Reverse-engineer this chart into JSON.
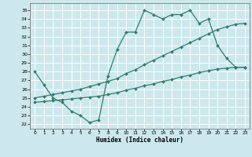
{
  "xlabel": "Humidex (Indice chaleur)",
  "xlim": [
    -0.5,
    23.5
  ],
  "ylim": [
    21.5,
    35.8
  ],
  "yticks": [
    22,
    23,
    24,
    25,
    26,
    27,
    28,
    29,
    30,
    31,
    32,
    33,
    34,
    35
  ],
  "xticks": [
    0,
    1,
    2,
    3,
    4,
    5,
    6,
    7,
    8,
    9,
    10,
    11,
    12,
    13,
    14,
    15,
    16,
    17,
    18,
    19,
    20,
    21,
    22,
    23
  ],
  "bg_color": "#cce8ed",
  "grid_color": "#ffffff",
  "line_color": "#2e7d6e",
  "line1_x": [
    0,
    1,
    2,
    3,
    4,
    5,
    6,
    7,
    8,
    9,
    10,
    11,
    12,
    13,
    14,
    15,
    16,
    17,
    18,
    19,
    20,
    21,
    22,
    23
  ],
  "line1_y": [
    28.0,
    26.5,
    25.0,
    24.5,
    23.5,
    23.0,
    22.2,
    22.5,
    27.5,
    30.5,
    32.5,
    32.5,
    35.0,
    34.5,
    34.0,
    34.5,
    34.5,
    35.0,
    33.5,
    34.0,
    31.0,
    29.5,
    28.5,
    28.5
  ],
  "line2_x": [
    0,
    1,
    2,
    3,
    4,
    5,
    6,
    7,
    8,
    9,
    10,
    11,
    12,
    13,
    14,
    15,
    16,
    17,
    18,
    19,
    20,
    21,
    22,
    23
  ],
  "line2_y": [
    25.0,
    25.2,
    25.4,
    25.6,
    25.8,
    26.0,
    26.3,
    26.6,
    26.9,
    27.2,
    27.8,
    28.2,
    28.8,
    29.3,
    29.8,
    30.3,
    30.8,
    31.3,
    31.8,
    32.3,
    32.8,
    33.1,
    33.4,
    33.5
  ],
  "line3_x": [
    0,
    1,
    2,
    3,
    4,
    5,
    6,
    7,
    8,
    9,
    10,
    11,
    12,
    13,
    14,
    15,
    16,
    17,
    18,
    19,
    20,
    21,
    22,
    23
  ],
  "line3_y": [
    24.5,
    24.6,
    24.7,
    24.8,
    24.9,
    25.0,
    25.1,
    25.2,
    25.4,
    25.6,
    25.9,
    26.1,
    26.4,
    26.6,
    26.9,
    27.1,
    27.4,
    27.6,
    27.9,
    28.1,
    28.3,
    28.4,
    28.5,
    28.5
  ]
}
